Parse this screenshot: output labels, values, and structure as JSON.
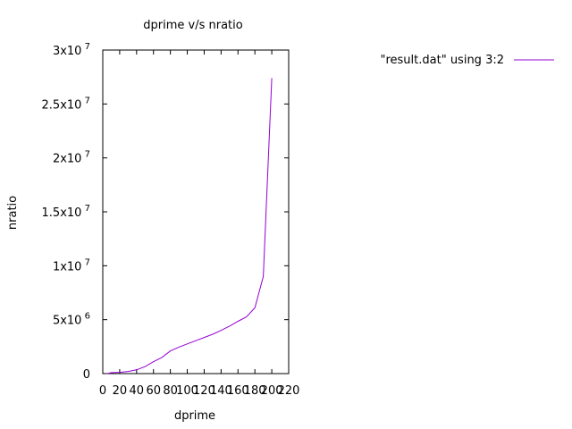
{
  "chart_data": {
    "type": "line",
    "title": "dprime v/s nratio",
    "xlabel": "dprime",
    "ylabel": "nratio",
    "xlim": [
      0,
      220
    ],
    "ylim": [
      0,
      30000000
    ],
    "x_ticks": [
      {
        "value": 0,
        "label": "0"
      },
      {
        "value": 20,
        "label": "20"
      },
      {
        "value": 40,
        "label": "40"
      },
      {
        "value": 60,
        "label": "60"
      },
      {
        "value": 80,
        "label": "80"
      },
      {
        "value": 100,
        "label": "100"
      },
      {
        "value": 120,
        "label": "120"
      },
      {
        "value": 140,
        "label": "140"
      },
      {
        "value": 160,
        "label": "160"
      },
      {
        "value": 180,
        "label": "180"
      },
      {
        "value": 200,
        "label": "200"
      },
      {
        "value": 220,
        "label": "220"
      }
    ],
    "y_ticks": [
      {
        "value": 0,
        "mantissa": "0",
        "exponent": ""
      },
      {
        "value": 5000000,
        "mantissa": "5x10",
        "exponent": "6"
      },
      {
        "value": 10000000,
        "mantissa": "1x10",
        "exponent": "7"
      },
      {
        "value": 15000000,
        "mantissa": "1.5x10",
        "exponent": "7"
      },
      {
        "value": 20000000,
        "mantissa": "2x10",
        "exponent": "7"
      },
      {
        "value": 25000000,
        "mantissa": "2.5x10",
        "exponent": "7"
      },
      {
        "value": 30000000,
        "mantissa": "3x10",
        "exponent": "7"
      }
    ],
    "grid": false,
    "legend_position": "top-right",
    "series": [
      {
        "name": "\"result.dat\" using 3:2",
        "color": "#9400d3",
        "x": [
          5,
          10,
          20,
          30,
          40,
          50,
          60,
          70,
          80,
          90,
          100,
          110,
          120,
          130,
          140,
          150,
          160,
          170,
          180,
          190,
          200
        ],
        "y": [
          0,
          80000,
          120000,
          200000,
          350000,
          650000,
          1100000,
          1500000,
          2100000,
          2450000,
          2750000,
          3050000,
          3350000,
          3650000,
          4000000,
          4400000,
          4850000,
          5250000,
          6100000,
          9000000,
          27400000
        ]
      }
    ]
  }
}
